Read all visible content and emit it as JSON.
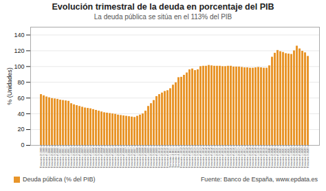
{
  "chart_data": {
    "type": "bar",
    "title": "Evolución trimestral de la deuda en porcentaje del PIB",
    "subtitle": "La deuda pública se sitúa en el 113% del PIB",
    "ylabel": "% (Unidades)",
    "source": "Fuente: Banco de España, www.epdata.es",
    "categories": [
      "Trimestre\n2\n1999",
      "Trimestre\n3\n1999",
      "Trimestre\n4\n1999",
      "Trimestre\n1\n2000",
      "Trimestre\n2\n2000",
      "Trimestre\n3\n2000",
      "Trimestre\n4\n2000",
      "Trimestre\n1\n2001",
      "Trimestre\n2\n2001",
      "Trimestre\n3\n2001",
      "Trimestre\n4\n2001",
      "Trimestre\n1\n2002",
      "Trimestre\n2\n2002",
      "Trimestre\n3\n2002",
      "Trimestre\n4\n2002",
      "Trimestre\n1\n2003",
      "Trimestre\n2\n2003",
      "Trimestre\n3\n2003",
      "Trimestre\n4\n2003",
      "Trimestre\n1\n2004",
      "Trimestre\n2\n2004",
      "Trimestre\n3\n2004",
      "Trimestre\n4\n2004",
      "Trimestre\n1\n2005",
      "Trimestre\n2\n2005",
      "Trimestre\n3\n2005",
      "Trimestre\n4\n2005",
      "Trimestre\n1\n2006",
      "Trimestre\n2\n2006",
      "Trimestre\n3\n2006",
      "Trimestre\n4\n2006",
      "Trimestre\n1\n2007",
      "Trimestre\n2\n2007",
      "Trimestre\n3\n2007",
      "Trimestre\n4\n2007",
      "Trimestre\n1\n2008",
      "Trimestre\n2\n2008",
      "Trimestre\n3\n2008",
      "Trimestre\n4\n2008",
      "Trimestre\n1\n2009",
      "Trimestre\n2\n2009",
      "Trimestre\n3\n2009",
      "Trimestre\n4\n2009",
      "Trimestre\n1\n2010",
      "Trimestre\n2\n2010",
      "Trimestre\n3\n2010",
      "Trimestre\n4\n2010",
      "Trimestre\n1\n2011",
      "Trimestre\n2\n2011",
      "Trimestre\n3\n2011",
      "Trimestre\n4\n2011",
      "Trimestre\n1\n2012",
      "Trimestre\n2\n2012",
      "Trimestre\n3\n2012",
      "Trimestre\n4\n2012",
      "Trimestre\n1\n2013",
      "Trimestre\n2\n2013",
      "Trimestre\n3\n2013",
      "Trimestre\n4\n2013",
      "Trimestre\n1\n2014",
      "Trimestre\n2\n2014",
      "Trimestre\n3\n2014",
      "Trimestre\n4\n2014",
      "Trimestre\n1\n2015",
      "Trimestre\n2\n2015",
      "Trimestre\n3\n2015",
      "Trimestre\n4\n2015",
      "Trimestre\n1\n2016",
      "Trimestre\n2\n2016",
      "Trimestre\n3\n2016",
      "Trimestre\n4\n2016",
      "Trimestre\n1\n2017",
      "Trimestre\n2\n2017",
      "Trimestre\n3\n2017",
      "Trimestre\n4\n2017",
      "Trimestre\n1\n2018",
      "Trimestre\n2\n2018",
      "Trimestre\n3\n2018",
      "Trimestre\n4\n2018",
      "Trimestre\n1\n2019",
      "Trimestre\n2\n2019",
      "Trimestre\n3\n2019",
      "Trimestre\n4\n2019",
      "Trimestre\n1\n2020",
      "Trimestre\n2\n2020",
      "Trimestre\n3\n2020",
      "Trimestre\n4\n2020",
      "Trimestre\n1\n2021",
      "Trimestre\n2\n2021",
      "Trimestre\n3\n2021",
      "Trimestre\n4\n2021",
      "Trimestre\n1\n2022",
      "Trimestre\n2\n2022",
      "Trimestre\n3\n2022",
      "Trimestre\n4\n2022",
      "Trimestre\n1\n2023",
      "Trimestre\n2\n2023",
      "Trimestre\n3\n2023"
    ],
    "series": [
      {
        "name": "Deuda pública (% del PIB)",
        "color": "#E8952A",
        "values": [
          64.5,
          63.0,
          61.5,
          60.5,
          59.5,
          59.0,
          58.5,
          57.5,
          57.0,
          56.5,
          56.0,
          53.0,
          51.5,
          50.5,
          49.5,
          48.5,
          47.5,
          47.0,
          46.5,
          45.5,
          44.5,
          43.5,
          42.5,
          41.5,
          41.0,
          40.5,
          40.0,
          39.5,
          38.5,
          38.0,
          37.5,
          37.0,
          36.5,
          36.0,
          35.5,
          37.0,
          38.5,
          40.0,
          43.5,
          49.5,
          53.0,
          57.0,
          62.0,
          64.5,
          66.5,
          68.5,
          69.5,
          72.0,
          76.5,
          79.5,
          86.0,
          86.5,
          89.0,
          92.0,
          96.0,
          97.0,
          95.0,
          96.0,
          100.0,
          100.5,
          100.5,
          101.5,
          101.0,
          100.5,
          100.5,
          100.5,
          100.0,
          100.0,
          100.5,
          100.5,
          99.5,
          99.5,
          99.5,
          99.0,
          98.5,
          98.5,
          98.0,
          98.0,
          98.5,
          99.0,
          98.5,
          98.0,
          98.0,
          101.0,
          112.0,
          117.0,
          120.5,
          119.0,
          118.0,
          116.5,
          116.0,
          115.5,
          120.0,
          126.0,
          122.5,
          119.5,
          117.5,
          113.0
        ]
      }
    ],
    "ylim": [
      0,
      150
    ],
    "yticks": [
      0,
      20,
      40,
      60,
      80,
      100,
      120,
      140
    ],
    "grid": true,
    "legend": "lower left"
  }
}
